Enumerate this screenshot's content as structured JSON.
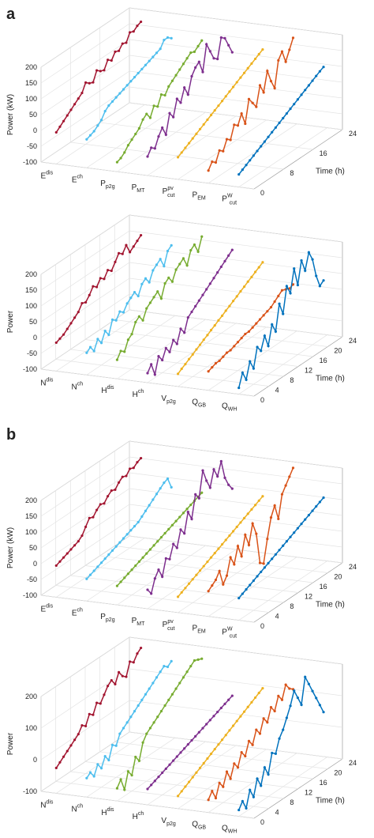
{
  "panels": [
    "a",
    "b"
  ],
  "chart_data": [
    {
      "type": "line3d",
      "ylabel": "Power (kW)",
      "xlabel": "Time (h)",
      "x": [
        0,
        1,
        2,
        3,
        4,
        5,
        6,
        7,
        8,
        9,
        10,
        11,
        12,
        13,
        14,
        15,
        16,
        17,
        18,
        19,
        20,
        21,
        22,
        23
      ],
      "xlim": [
        0,
        24
      ],
      "xticks": [
        0,
        8,
        16,
        24
      ],
      "ylim": [
        -100,
        200
      ],
      "yticks": [
        -100,
        -50,
        0,
        50,
        100,
        150,
        200
      ],
      "grid": true,
      "series": [
        {
          "name": "E",
          "sup": "dis",
          "color": "#a2142f",
          "values": [
            0,
            10,
            20,
            30,
            40,
            50,
            60,
            70,
            95,
            85,
            80,
            110,
            100,
            95,
            120,
            110,
            130,
            125,
            140,
            135,
            160,
            155,
            165,
            170
          ]
        },
        {
          "name": "E",
          "sup": "ch",
          "color": "#4dbeee",
          "values": [
            -10,
            -5,
            0,
            10,
            20,
            40,
            50,
            55,
            60,
            65,
            70,
            75,
            80,
            85,
            90,
            95,
            100,
            105,
            110,
            115,
            120,
            140,
            140,
            130
          ]
        },
        {
          "name": "P",
          "sub": "p2g",
          "color": "#77ac30",
          "values": [
            -70,
            -65,
            -55,
            -40,
            -30,
            -20,
            -10,
            10,
            20,
            0,
            30,
            20,
            50,
            40,
            60,
            70,
            80,
            90,
            100,
            110,
            120,
            115,
            125,
            135
          ]
        },
        {
          "name": "P",
          "sub": "MT",
          "color": "#7e2f8e",
          "values": [
            -40,
            -20,
            -30,
            0,
            20,
            -10,
            50,
            30,
            80,
            60,
            100,
            70,
            120,
            140,
            150,
            110,
            190,
            160,
            130,
            120,
            180,
            170,
            140,
            110
          ]
        },
        {
          "name": "P",
          "sup": "pv",
          "sub": "cut",
          "color": "#edb120",
          "values": [
            -30,
            -23,
            -16,
            -9,
            -2,
            5,
            12,
            19,
            26,
            33,
            40,
            47,
            54,
            61,
            68,
            75,
            82,
            89,
            96,
            103,
            110,
            117,
            124,
            131
          ]
        },
        {
          "name": "P",
          "sub": "EM",
          "color": "#d95319",
          "values": [
            -60,
            -40,
            -50,
            -20,
            -30,
            0,
            -10,
            30,
            20,
            50,
            10,
            80,
            60,
            40,
            100,
            70,
            130,
            90,
            60,
            140,
            160,
            120,
            150,
            180
          ]
        },
        {
          "name": "P",
          "sup": "W",
          "sub": "cut",
          "color": "#0072bd",
          "values": [
            -60,
            -53,
            -46,
            -39,
            -32,
            -25,
            -18,
            -11,
            -4,
            3,
            10,
            17,
            24,
            31,
            38,
            45,
            52,
            59,
            66,
            73,
            80,
            87,
            94,
            100
          ]
        }
      ]
    },
    {
      "type": "line3d",
      "ylabel": "Power",
      "xlabel": "Time (h)",
      "x": [
        0,
        1,
        2,
        3,
        4,
        5,
        6,
        7,
        8,
        9,
        10,
        11,
        12,
        13,
        14,
        15,
        16,
        17,
        18,
        19,
        20,
        21,
        22,
        23
      ],
      "xlim": [
        0,
        24
      ],
      "xticks": [
        0,
        4,
        8,
        12,
        16,
        20,
        24
      ],
      "ylim": [
        -100,
        200
      ],
      "yticks": [
        -100,
        -50,
        0,
        50,
        100,
        150,
        200
      ],
      "grid": true,
      "series": [
        {
          "name": "N",
          "sup": "dis",
          "color": "#a2142f",
          "values": [
            -10,
            -5,
            0,
            10,
            20,
            30,
            40,
            60,
            55,
            70,
            90,
            80,
            100,
            90,
            110,
            100,
            120,
            140,
            130,
            150,
            120,
            130,
            140,
            150
          ]
        },
        {
          "name": "N",
          "sup": "ch",
          "color": "#4dbeee",
          "values": [
            -30,
            -20,
            -40,
            -10,
            -30,
            0,
            -20,
            20,
            10,
            30,
            20,
            40,
            50,
            60,
            40,
            70,
            80,
            60,
            90,
            100,
            110,
            80,
            120,
            130
          ]
        },
        {
          "name": "H",
          "sup": "dis",
          "color": "#77ac30",
          "values": [
            -40,
            -20,
            -30,
            0,
            10,
            40,
            50,
            30,
            60,
            70,
            80,
            90,
            60,
            100,
            110,
            90,
            120,
            130,
            140,
            110,
            150,
            160,
            130,
            170
          ]
        },
        {
          "name": "H",
          "sup": "ch",
          "color": "#7e2f8e",
          "values": [
            -70,
            -50,
            -90,
            -40,
            -60,
            -30,
            -50,
            -20,
            -40,
            0,
            -20,
            20,
            30,
            40,
            50,
            60,
            70,
            80,
            90,
            100,
            110,
            120,
            130,
            140
          ]
        },
        {
          "name": "V",
          "sub": "p2g",
          "color": "#edb120",
          "values": [
            -60,
            -52,
            -45,
            -37,
            -30,
            -22,
            -15,
            -7,
            0,
            8,
            15,
            23,
            30,
            38,
            45,
            53,
            60,
            68,
            75,
            83,
            90,
            98,
            105,
            113
          ]
        },
        {
          "name": "Q",
          "sub": "GB",
          "color": "#d95319",
          "values": [
            -40,
            -35,
            -30,
            -30,
            -25,
            -20,
            -20,
            -15,
            -10,
            -5,
            0,
            0,
            5,
            10,
            15,
            20,
            25,
            30,
            40,
            50,
            60,
            55,
            50,
            55
          ]
        },
        {
          "name": "Q",
          "sub": "WH",
          "color": "#0072bd",
          "values": [
            -80,
            -40,
            -70,
            -20,
            -50,
            10,
            -10,
            30,
            -10,
            50,
            20,
            100,
            60,
            140,
            110,
            180,
            120,
            190,
            150,
            200,
            170,
            110,
            70,
            80
          ]
        }
      ]
    },
    {
      "type": "line3d",
      "ylabel": "Power (kW)",
      "xlabel": "Time (h)",
      "x": [
        0,
        1,
        2,
        3,
        4,
        5,
        6,
        7,
        8,
        9,
        10,
        11,
        12,
        13,
        14,
        15,
        16,
        17,
        18,
        19,
        20,
        21,
        22,
        23
      ],
      "xlim": [
        0,
        24
      ],
      "xticks": [
        0,
        4,
        8,
        12,
        16,
        20,
        24
      ],
      "ylim": [
        -100,
        200
      ],
      "yticks": [
        -100,
        -50,
        0,
        50,
        100,
        150,
        200
      ],
      "grid": true,
      "series": [
        {
          "name": "E",
          "sup": "dis",
          "color": "#a2142f",
          "values": [
            0,
            5,
            10,
            15,
            20,
            25,
            30,
            40,
            60,
            80,
            75,
            90,
            100,
            95,
            110,
            120,
            115,
            130,
            140,
            135,
            150,
            145,
            155,
            160
          ]
        },
        {
          "name": "E",
          "sup": "ch",
          "color": "#4dbeee",
          "values": [
            -30,
            -25,
            -20,
            -15,
            -10,
            -5,
            0,
            5,
            10,
            15,
            20,
            25,
            30,
            35,
            40,
            50,
            60,
            70,
            80,
            90,
            100,
            110,
            115,
            80
          ]
        },
        {
          "name": "P",
          "sub": "p2g",
          "color": "#77ac30",
          "values": [
            -40,
            -35,
            -30,
            -25,
            -20,
            -15,
            -10,
            -5,
            0,
            5,
            10,
            15,
            20,
            25,
            30,
            35,
            40,
            45,
            50,
            55,
            60,
            65,
            70,
            75
          ]
        },
        {
          "name": "P",
          "sub": "MT",
          "color": "#7e2f8e",
          "values": [
            -40,
            -60,
            -20,
            0,
            -30,
            20,
            10,
            50,
            30,
            80,
            60,
            120,
            90,
            160,
            140,
            220,
            180,
            150,
            200,
            170,
            210,
            150,
            120,
            100
          ]
        },
        {
          "name": "P",
          "sup": "pv",
          "sub": "cut",
          "color": "#edb120",
          "values": [
            -50,
            -44,
            -38,
            -32,
            -26,
            -20,
            -14,
            -8,
            -2,
            4,
            10,
            16,
            22,
            28,
            34,
            40,
            46,
            52,
            58,
            64,
            70,
            76,
            82,
            88
          ]
        },
        {
          "name": "P",
          "sub": "EM",
          "color": "#d95319",
          "values": [
            -20,
            -10,
            0,
            20,
            -30,
            -10,
            40,
            10,
            60,
            20,
            80,
            40,
            100,
            60,
            -40,
            -50,
            20,
            80,
            110,
            60,
            130,
            150,
            170,
            190
          ]
        },
        {
          "name": "P",
          "sup": "W",
          "sub": "cut",
          "color": "#0072bd",
          "values": [
            -30,
            -24,
            -18,
            -12,
            -6,
            0,
            6,
            12,
            18,
            24,
            30,
            36,
            42,
            48,
            54,
            60,
            66,
            72,
            78,
            84,
            90,
            96,
            102,
            108
          ]
        }
      ]
    },
    {
      "type": "line3d",
      "ylabel": "Power",
      "xlabel": "Time (h)",
      "x": [
        0,
        1,
        2,
        3,
        4,
        5,
        6,
        7,
        8,
        9,
        10,
        11,
        12,
        13,
        14,
        15,
        16,
        17,
        18,
        19,
        20,
        21,
        22,
        23
      ],
      "xlim": [
        0,
        24
      ],
      "xticks": [
        0,
        4,
        8,
        12,
        16,
        20,
        24
      ],
      "ylim": [
        -100,
        200
      ],
      "yticks": [
        -100,
        0,
        100,
        200
      ],
      "grid": true,
      "series": [
        {
          "name": "N",
          "sup": "dis",
          "color": "#a2142f",
          "values": [
            -20,
            -10,
            0,
            10,
            20,
            30,
            40,
            60,
            50,
            80,
            70,
            100,
            90,
            110,
            130,
            140,
            120,
            150,
            130,
            120,
            160,
            150,
            170,
            180
          ]
        },
        {
          "name": "N",
          "sup": "ch",
          "color": "#4dbeee",
          "values": [
            -40,
            -30,
            -50,
            -20,
            -40,
            -10,
            -30,
            10,
            0,
            30,
            40,
            50,
            60,
            70,
            80,
            90,
            100,
            110,
            120,
            130,
            140,
            150,
            140,
            150
          ]
        },
        {
          "name": "H",
          "sup": "dis",
          "color": "#77ac30",
          "values": [
            -60,
            -40,
            -80,
            -30,
            -50,
            0,
            -20,
            30,
            50,
            60,
            70,
            80,
            90,
            100,
            110,
            120,
            130,
            140,
            150,
            160,
            170,
            180,
            175,
            170
          ]
        },
        {
          "name": "H",
          "sup": "ch",
          "color": "#7e2f8e",
          "values": [
            -50,
            -45,
            -40,
            -35,
            -30,
            -25,
            -20,
            -15,
            -10,
            -5,
            0,
            5,
            10,
            15,
            20,
            25,
            30,
            35,
            40,
            45,
            50,
            55,
            60,
            65
          ]
        },
        {
          "name": "V",
          "sub": "p2g",
          "color": "#edb120",
          "values": [
            -60,
            -53,
            -46,
            -39,
            -32,
            -25,
            -18,
            -11,
            -4,
            3,
            10,
            17,
            24,
            31,
            38,
            45,
            52,
            59,
            66,
            73,
            80,
            87,
            94,
            101
          ]
        },
        {
          "name": "Q",
          "sub": "GB",
          "color": "#d95319",
          "values": [
            -60,
            -40,
            -70,
            -30,
            -50,
            -10,
            -40,
            0,
            -20,
            20,
            0,
            40,
            20,
            60,
            40,
            80,
            60,
            100,
            80,
            120,
            100,
            140,
            120,
            110
          ]
        },
        {
          "name": "Q",
          "sub": "WH",
          "color": "#0072bd",
          "values": [
            -80,
            -60,
            -90,
            -40,
            -70,
            -20,
            -50,
            0,
            -30,
            30,
            20,
            60,
            80,
            110,
            140,
            180,
            150,
            120,
            200,
            170,
            140,
            110,
            80,
            50
          ]
        }
      ]
    }
  ]
}
